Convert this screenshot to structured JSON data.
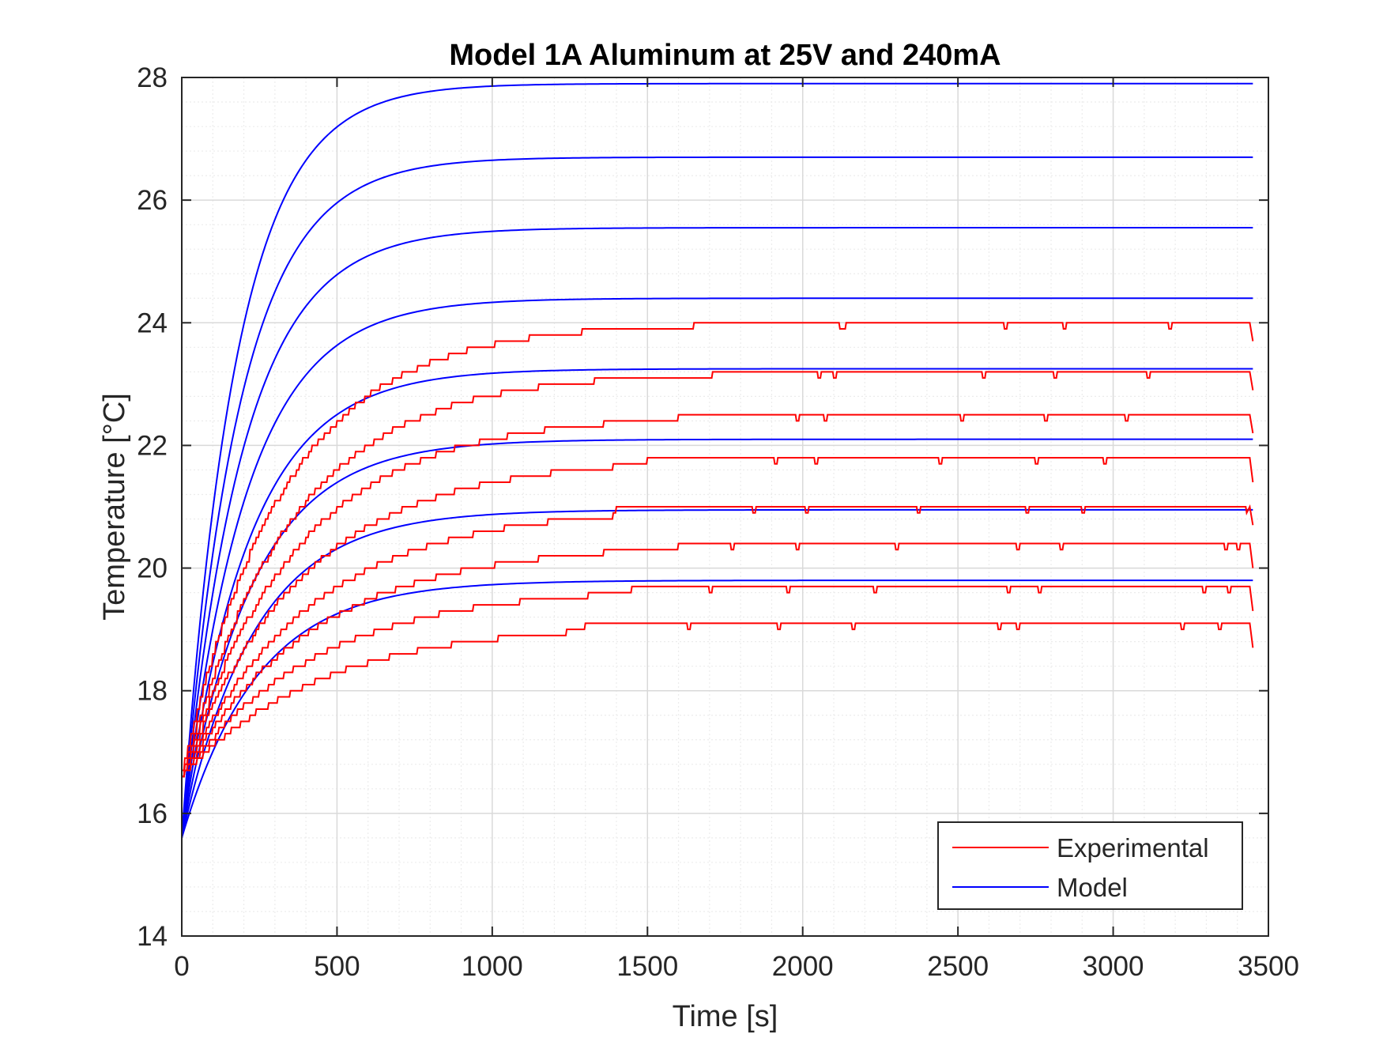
{
  "chart_data": {
    "type": "line",
    "title": "Model 1A Aluminum at 25V and 240mA",
    "xlabel": "Time [s]",
    "ylabel": "Temperature [°C]",
    "xlim": [
      0,
      3500
    ],
    "ylim": [
      14,
      28
    ],
    "xticks": [
      0,
      500,
      1000,
      1500,
      2000,
      2500,
      3000,
      3500
    ],
    "yticks": [
      14,
      16,
      18,
      20,
      22,
      24,
      26,
      28
    ],
    "grid": true,
    "minor_grid": true,
    "legend": {
      "position": "bottom-right",
      "entries": [
        {
          "label": "Experimental",
          "color": "#ff0000"
        },
        {
          "label": "Model",
          "color": "#0000ff"
        }
      ]
    },
    "colors": {
      "experimental": "#ff0000",
      "model": "#0000ff",
      "grid_major": "#d9d9d9",
      "grid_minor": "#ececec",
      "axes": "#262626"
    },
    "model_curves": [
      {
        "start": 15.6,
        "final": 27.9,
        "tau": 175,
        "end_time": 3450
      },
      {
        "start": 15.6,
        "final": 26.7,
        "tau": 185,
        "end_time": 3450
      },
      {
        "start": 15.6,
        "final": 25.55,
        "tau": 195,
        "end_time": 3450
      },
      {
        "start": 15.6,
        "final": 24.4,
        "tau": 205,
        "end_time": 3450
      },
      {
        "start": 15.6,
        "final": 23.25,
        "tau": 215,
        "end_time": 3450
      },
      {
        "start": 15.6,
        "final": 22.1,
        "tau": 225,
        "end_time": 3450
      },
      {
        "start": 15.6,
        "final": 20.95,
        "tau": 235,
        "end_time": 3450
      },
      {
        "start": 15.6,
        "final": 19.8,
        "tau": 245,
        "end_time": 3450
      }
    ],
    "experimental_curves": [
      {
        "start": 16.7,
        "final": 24.0,
        "tau": 330,
        "flat_from": 1750,
        "end_time": 3450,
        "end_drop": 23.7
      },
      {
        "start": 16.6,
        "final": 23.2,
        "tau": 350,
        "flat_from": 1750,
        "end_time": 3450,
        "end_drop": 22.9
      },
      {
        "start": 16.6,
        "final": 22.5,
        "tau": 370,
        "flat_from": 1600,
        "end_time": 3450,
        "end_drop": 22.2
      },
      {
        "start": 16.6,
        "final": 21.8,
        "tau": 390,
        "flat_from": 1500,
        "end_time": 3450,
        "end_drop": 21.4
      },
      {
        "start": 16.6,
        "final": 21.0,
        "tau": 410,
        "flat_from": 1400,
        "end_time": 3450,
        "end_drop": 20.7
      },
      {
        "start": 16.6,
        "final": 20.4,
        "tau": 420,
        "flat_from": 1600,
        "end_time": 3450,
        "end_drop": 20.0
      },
      {
        "start": 16.6,
        "final": 19.7,
        "tau": 430,
        "flat_from": 1450,
        "end_time": 3450,
        "end_drop": 19.3
      },
      {
        "start": 16.6,
        "final": 19.1,
        "tau": 440,
        "flat_from": 1300,
        "end_time": 3450,
        "end_drop": 18.7
      }
    ]
  }
}
